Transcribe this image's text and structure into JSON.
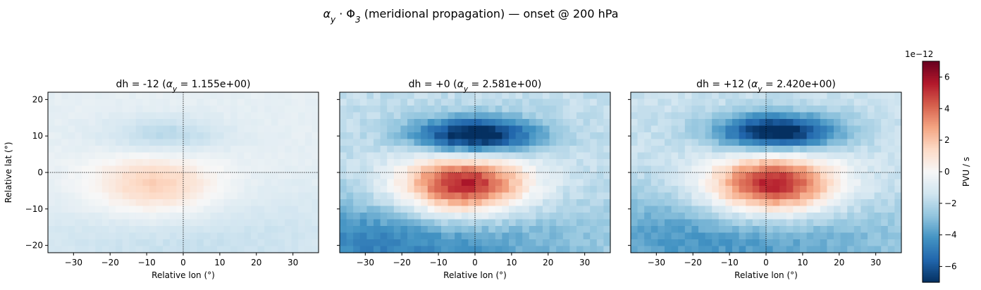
{
  "suptitle": "α_y · Φ_3  (meridional propagation)  —  onset @ 200 hPa",
  "chart_data": [
    {
      "type": "heatmap",
      "title": "dh = -12   (αy = 1.155e+00)",
      "xlabel": "Relative lon (°)",
      "ylabel": "Relative lat (°)",
      "xlim": [
        -37,
        37
      ],
      "ylim": [
        -22,
        22
      ],
      "xticks": [
        -30,
        -20,
        -10,
        0,
        10,
        20,
        30
      ],
      "yticks": [
        -20,
        -10,
        0,
        10,
        20
      ],
      "colorscale": "RdBu_r",
      "zlim": [
        -7e-12,
        7e-12
      ],
      "features": [
        {
          "kind": "positive anomaly",
          "center_lon": -8,
          "center_lat": -3,
          "peak": 1.7e-12
        },
        {
          "kind": "negative anomaly",
          "center_lon": -5,
          "center_lat": 10,
          "peak": -1.5e-12
        },
        {
          "kind": "negative background",
          "center_lon": 0,
          "center_lat": -17,
          "peak": -1.8e-12
        }
      ]
    },
    {
      "type": "heatmap",
      "title": "dh = +0   (αy = 2.581e+00)",
      "xlabel": "Relative lon (°)",
      "ylabel": "",
      "xlim": [
        -37,
        37
      ],
      "ylim": [
        -22,
        22
      ],
      "xticks": [
        -30,
        -20,
        -10,
        0,
        10,
        20,
        30
      ],
      "yticks": [
        -20,
        -10,
        0,
        10,
        20
      ],
      "colorscale": "RdBu_r",
      "zlim": [
        -7e-12,
        7e-12
      ],
      "features": [
        {
          "kind": "positive anomaly",
          "center_lon": -3,
          "center_lat": -3,
          "peak": 5.5e-12
        },
        {
          "kind": "negative anomaly",
          "center_lon": 0,
          "center_lat": 10,
          "peak": -6.5e-12
        },
        {
          "kind": "negative background",
          "center_lon": -20,
          "center_lat": -18,
          "peak": -5e-12
        }
      ]
    },
    {
      "type": "heatmap",
      "title": "dh = +12   (αy = 2.420e+00)",
      "xlabel": "Relative lon (°)",
      "ylabel": "",
      "xlim": [
        -37,
        37
      ],
      "ylim": [
        -22,
        22
      ],
      "xticks": [
        -30,
        -20,
        -10,
        0,
        10,
        20,
        30
      ],
      "yticks": [
        -20,
        -10,
        0,
        10,
        20
      ],
      "colorscale": "RdBu_r",
      "zlim": [
        -7e-12,
        7e-12
      ],
      "features": [
        {
          "kind": "positive anomaly",
          "center_lon": 2,
          "center_lat": -3,
          "peak": 5.5e-12
        },
        {
          "kind": "negative anomaly",
          "center_lon": 3,
          "center_lat": 11,
          "peak": -6.3e-12
        },
        {
          "kind": "negative background",
          "center_lon": -10,
          "center_lat": -17,
          "peak": -4.5e-12
        }
      ]
    }
  ],
  "colorbar": {
    "label": "PVU / s",
    "multiplier": "1e−12",
    "ticks": [
      -6,
      -4,
      -2,
      0,
      2,
      4,
      6
    ],
    "range": [
      -7,
      7
    ]
  },
  "colors": {
    "rdbu": [
      "#053061",
      "#2166ac",
      "#4393c3",
      "#92c5de",
      "#d1e5f0",
      "#f7f7f7",
      "#fddbc7",
      "#f4a582",
      "#d6604d",
      "#b2182b",
      "#67001f"
    ]
  }
}
